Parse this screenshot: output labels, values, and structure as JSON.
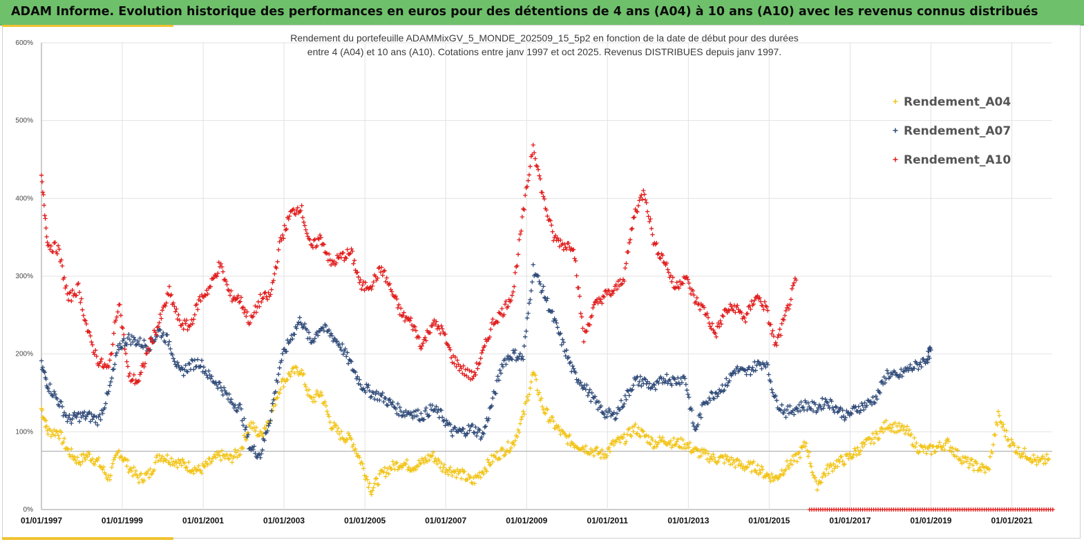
{
  "header": {
    "title": "ADAM Informe. Evolution historique des performances en euros pour des détentions de 4 ans (A04) à 10 ans (A10) avec les revenus connus distribués"
  },
  "chart_data": {
    "type": "scatter",
    "title_line1": "Rendement du portefeuille ADAMMixGV_5_MONDE_202509_15_5p2 en fonction de la date de début pour des durées",
    "title_line2": "entre 4 (A04) et 10 ans (A10). Cotations entre janv 1997 et oct 2025. Revenus DISTRIBUES depuis janv 1997.",
    "xlabel": "",
    "ylabel": "",
    "x_axis": {
      "type": "date",
      "min": "1997-01-01",
      "max": "2022-01-01"
    },
    "ylim": [
      0,
      600
    ],
    "y_ticks": [
      "0%",
      "100%",
      "200%",
      "300%",
      "400%",
      "500%",
      "600%"
    ],
    "x_ticks": [
      "01/01/1997",
      "01/01/1999",
      "01/01/2001",
      "01/01/2003",
      "01/01/2005",
      "01/01/2007",
      "01/01/2009",
      "01/01/2011",
      "01/01/2013",
      "01/01/2015",
      "01/01/2017",
      "01/01/2019",
      "01/01/2021"
    ],
    "reference_line": 75,
    "grid": "vertical and horizontal",
    "legend_position": "top-right",
    "marker": "+",
    "series": [
      {
        "name": "Rendement_A04",
        "color": "#f2c418",
        "points": [
          [
            "1997-01-01",
            130
          ],
          [
            "1997-03-01",
            100
          ],
          [
            "1997-06-01",
            100
          ],
          [
            "1997-09-01",
            75
          ],
          [
            "1997-12-01",
            62
          ],
          [
            "1998-03-01",
            70
          ],
          [
            "1998-06-01",
            60
          ],
          [
            "1998-09-01",
            40
          ],
          [
            "1998-12-01",
            75
          ],
          [
            "1999-03-01",
            55
          ],
          [
            "1999-06-01",
            40
          ],
          [
            "1999-09-01",
            45
          ],
          [
            "1999-12-01",
            70
          ],
          [
            "2000-03-01",
            65
          ],
          [
            "2000-06-01",
            60
          ],
          [
            "2000-09-01",
            55
          ],
          [
            "2000-12-01",
            50
          ],
          [
            "2001-03-01",
            60
          ],
          [
            "2001-06-01",
            70
          ],
          [
            "2001-09-01",
            65
          ],
          [
            "2001-12-01",
            75
          ],
          [
            "2002-03-01",
            110
          ],
          [
            "2002-06-01",
            95
          ],
          [
            "2002-09-01",
            120
          ],
          [
            "2002-12-01",
            160
          ],
          [
            "2003-03-01",
            175
          ],
          [
            "2003-06-01",
            180
          ],
          [
            "2003-09-01",
            140
          ],
          [
            "2003-12-01",
            150
          ],
          [
            "2004-03-01",
            110
          ],
          [
            "2004-06-01",
            95
          ],
          [
            "2004-09-01",
            90
          ],
          [
            "2004-12-01",
            60
          ],
          [
            "2005-03-01",
            25
          ],
          [
            "2005-06-01",
            45
          ],
          [
            "2005-09-01",
            55
          ],
          [
            "2005-12-01",
            60
          ],
          [
            "2006-03-01",
            55
          ],
          [
            "2006-06-01",
            60
          ],
          [
            "2006-09-01",
            70
          ],
          [
            "2006-12-01",
            55
          ],
          [
            "2007-03-01",
            50
          ],
          [
            "2007-06-01",
            45
          ],
          [
            "2007-09-01",
            35
          ],
          [
            "2007-12-01",
            50
          ],
          [
            "2008-03-01",
            65
          ],
          [
            "2008-06-01",
            75
          ],
          [
            "2008-09-01",
            85
          ],
          [
            "2008-12-01",
            120
          ],
          [
            "2009-03-01",
            175
          ],
          [
            "2009-06-01",
            130
          ],
          [
            "2009-09-01",
            110
          ],
          [
            "2009-12-01",
            95
          ],
          [
            "2010-03-01",
            85
          ],
          [
            "2010-06-01",
            80
          ],
          [
            "2010-09-01",
            75
          ],
          [
            "2010-12-01",
            70
          ],
          [
            "2011-03-01",
            85
          ],
          [
            "2011-06-01",
            90
          ],
          [
            "2011-09-01",
            105
          ],
          [
            "2011-12-01",
            95
          ],
          [
            "2012-03-01",
            85
          ],
          [
            "2012-06-01",
            90
          ],
          [
            "2012-09-01",
            85
          ],
          [
            "2012-12-01",
            85
          ],
          [
            "2013-03-01",
            75
          ],
          [
            "2013-06-01",
            70
          ],
          [
            "2013-09-01",
            65
          ],
          [
            "2013-12-01",
            65
          ],
          [
            "2014-03-01",
            60
          ],
          [
            "2014-06-01",
            55
          ],
          [
            "2014-09-01",
            55
          ],
          [
            "2014-12-01",
            45
          ],
          [
            "2015-03-01",
            40
          ],
          [
            "2015-06-01",
            55
          ],
          [
            "2015-09-01",
            65
          ],
          [
            "2015-12-01",
            85
          ],
          [
            "2016-03-01",
            30
          ],
          [
            "2016-06-01",
            50
          ],
          [
            "2016-09-01",
            60
          ],
          [
            "2016-12-01",
            65
          ],
          [
            "2017-03-01",
            75
          ],
          [
            "2017-06-01",
            85
          ],
          [
            "2017-09-01",
            95
          ],
          [
            "2017-12-01",
            110
          ],
          [
            "2018-03-01",
            105
          ],
          [
            "2018-06-01",
            100
          ],
          [
            "2018-09-01",
            80
          ],
          [
            "2018-12-01",
            75
          ],
          [
            "2019-03-01",
            80
          ],
          [
            "2019-06-01",
            85
          ],
          [
            "2019-09-01",
            70
          ],
          [
            "2019-12-01",
            60
          ],
          [
            "2020-03-01",
            55
          ],
          [
            "2020-06-01",
            50
          ],
          [
            "2020-09-01",
            120
          ],
          [
            "2020-12-01",
            90
          ],
          [
            "2021-03-01",
            75
          ],
          [
            "2021-06-01",
            70
          ],
          [
            "2021-09-01",
            60
          ],
          [
            "2021-12-01",
            65
          ]
        ]
      },
      {
        "name": "Rendement_A07",
        "color": "#2f4a78",
        "points": [
          [
            "1997-01-01",
            185
          ],
          [
            "1997-03-01",
            160
          ],
          [
            "1997-06-01",
            140
          ],
          [
            "1997-09-01",
            115
          ],
          [
            "1997-12-01",
            120
          ],
          [
            "1998-03-01",
            120
          ],
          [
            "1998-06-01",
            115
          ],
          [
            "1998-09-01",
            150
          ],
          [
            "1998-12-01",
            210
          ],
          [
            "1999-03-01",
            220
          ],
          [
            "1999-06-01",
            215
          ],
          [
            "1999-09-01",
            210
          ],
          [
            "1999-12-01",
            230
          ],
          [
            "2000-03-01",
            215
          ],
          [
            "2000-06-01",
            175
          ],
          [
            "2000-09-01",
            185
          ],
          [
            "2000-12-01",
            190
          ],
          [
            "2001-03-01",
            170
          ],
          [
            "2001-06-01",
            160
          ],
          [
            "2001-09-01",
            140
          ],
          [
            "2001-12-01",
            130
          ],
          [
            "2002-03-01",
            80
          ],
          [
            "2002-06-01",
            70
          ],
          [
            "2002-09-01",
            120
          ],
          [
            "2002-12-01",
            190
          ],
          [
            "2003-03-01",
            220
          ],
          [
            "2003-06-01",
            245
          ],
          [
            "2003-09-01",
            215
          ],
          [
            "2003-12-01",
            235
          ],
          [
            "2004-03-01",
            225
          ],
          [
            "2004-06-01",
            210
          ],
          [
            "2004-09-01",
            185
          ],
          [
            "2004-12-01",
            160
          ],
          [
            "2005-03-01",
            150
          ],
          [
            "2005-06-01",
            145
          ],
          [
            "2005-09-01",
            135
          ],
          [
            "2005-12-01",
            125
          ],
          [
            "2006-03-01",
            125
          ],
          [
            "2006-06-01",
            120
          ],
          [
            "2006-09-01",
            130
          ],
          [
            "2006-12-01",
            120
          ],
          [
            "2007-03-01",
            100
          ],
          [
            "2007-06-01",
            100
          ],
          [
            "2007-09-01",
            105
          ],
          [
            "2007-12-01",
            95
          ],
          [
            "2008-03-01",
            140
          ],
          [
            "2008-06-01",
            190
          ],
          [
            "2008-09-01",
            200
          ],
          [
            "2008-12-01",
            195
          ],
          [
            "2009-03-01",
            310
          ],
          [
            "2009-06-01",
            280
          ],
          [
            "2009-09-01",
            245
          ],
          [
            "2009-12-01",
            210
          ],
          [
            "2010-03-01",
            175
          ],
          [
            "2010-06-01",
            160
          ],
          [
            "2010-09-01",
            140
          ],
          [
            "2010-12-01",
            125
          ],
          [
            "2011-03-01",
            120
          ],
          [
            "2011-06-01",
            140
          ],
          [
            "2011-09-01",
            165
          ],
          [
            "2011-12-01",
            165
          ],
          [
            "2012-03-01",
            155
          ],
          [
            "2012-06-01",
            170
          ],
          [
            "2012-09-01",
            165
          ],
          [
            "2012-12-01",
            170
          ],
          [
            "2013-03-01",
            100
          ],
          [
            "2013-06-01",
            140
          ],
          [
            "2013-09-01",
            150
          ],
          [
            "2013-12-01",
            160
          ],
          [
            "2014-03-01",
            180
          ],
          [
            "2014-06-01",
            175
          ],
          [
            "2014-09-01",
            185
          ],
          [
            "2014-12-01",
            190
          ],
          [
            "2015-03-01",
            140
          ],
          [
            "2015-06-01",
            125
          ],
          [
            "2015-09-01",
            130
          ],
          [
            "2015-12-01",
            135
          ],
          [
            "2016-03-01",
            130
          ],
          [
            "2016-06-01",
            140
          ],
          [
            "2016-09-01",
            130
          ],
          [
            "2016-12-01",
            120
          ],
          [
            "2017-03-01",
            130
          ],
          [
            "2017-06-01",
            135
          ],
          [
            "2017-09-01",
            145
          ],
          [
            "2017-12-01",
            175
          ],
          [
            "2018-03-01",
            170
          ],
          [
            "2018-06-01",
            180
          ],
          [
            "2018-09-01",
            185
          ],
          [
            "2018-12-01",
            195
          ],
          [
            "2019-01-01",
            205
          ]
        ]
      },
      {
        "name": "Rendement_A10",
        "color": "#e11b1b",
        "points": [
          [
            "1997-01-01",
            425
          ],
          [
            "1997-03-01",
            340
          ],
          [
            "1997-06-01",
            335
          ],
          [
            "1997-09-01",
            270
          ],
          [
            "1997-12-01",
            285
          ],
          [
            "1998-03-01",
            225
          ],
          [
            "1998-06-01",
            190
          ],
          [
            "1998-09-01",
            180
          ],
          [
            "1998-12-01",
            270
          ],
          [
            "1999-03-01",
            170
          ],
          [
            "1999-06-01",
            165
          ],
          [
            "1999-09-01",
            210
          ],
          [
            "1999-12-01",
            240
          ],
          [
            "2000-03-01",
            280
          ],
          [
            "2000-06-01",
            240
          ],
          [
            "2000-09-01",
            235
          ],
          [
            "2000-12-01",
            270
          ],
          [
            "2001-03-01",
            285
          ],
          [
            "2001-06-01",
            315
          ],
          [
            "2001-09-01",
            275
          ],
          [
            "2001-12-01",
            270
          ],
          [
            "2002-03-01",
            240
          ],
          [
            "2002-06-01",
            270
          ],
          [
            "2002-09-01",
            275
          ],
          [
            "2002-12-01",
            345
          ],
          [
            "2003-03-01",
            380
          ],
          [
            "2003-06-01",
            390
          ],
          [
            "2003-09-01",
            335
          ],
          [
            "2003-12-01",
            350
          ],
          [
            "2004-03-01",
            315
          ],
          [
            "2004-06-01",
            325
          ],
          [
            "2004-09-01",
            330
          ],
          [
            "2004-12-01",
            285
          ],
          [
            "2005-03-01",
            290
          ],
          [
            "2005-06-01",
            310
          ],
          [
            "2005-09-01",
            280
          ],
          [
            "2005-12-01",
            250
          ],
          [
            "2006-03-01",
            240
          ],
          [
            "2006-06-01",
            210
          ],
          [
            "2006-09-01",
            240
          ],
          [
            "2006-12-01",
            230
          ],
          [
            "2007-03-01",
            195
          ],
          [
            "2007-06-01",
            180
          ],
          [
            "2007-09-01",
            170
          ],
          [
            "2007-12-01",
            200
          ],
          [
            "2008-03-01",
            240
          ],
          [
            "2008-06-01",
            255
          ],
          [
            "2008-09-01",
            280
          ],
          [
            "2008-12-01",
            380
          ],
          [
            "2009-03-01",
            470
          ],
          [
            "2009-06-01",
            400
          ],
          [
            "2009-09-01",
            350
          ],
          [
            "2009-12-01",
            340
          ],
          [
            "2010-03-01",
            340
          ],
          [
            "2010-06-01",
            220
          ],
          [
            "2010-09-01",
            260
          ],
          [
            "2010-12-01",
            275
          ],
          [
            "2011-03-01",
            280
          ],
          [
            "2011-06-01",
            300
          ],
          [
            "2011-09-01",
            380
          ],
          [
            "2011-12-01",
            410
          ],
          [
            "2012-03-01",
            340
          ],
          [
            "2012-06-01",
            320
          ],
          [
            "2012-09-01",
            285
          ],
          [
            "2012-12-01",
            300
          ],
          [
            "2013-03-01",
            270
          ],
          [
            "2013-06-01",
            255
          ],
          [
            "2013-09-01",
            225
          ],
          [
            "2013-12-01",
            255
          ],
          [
            "2014-03-01",
            260
          ],
          [
            "2014-06-01",
            245
          ],
          [
            "2014-09-01",
            275
          ],
          [
            "2014-12-01",
            260
          ],
          [
            "2015-03-01",
            210
          ],
          [
            "2015-06-01",
            250
          ],
          [
            "2015-09-01",
            295
          ]
        ]
      }
    ],
    "zero_band": {
      "series": "Rendement_A10",
      "from": "2016-01-01",
      "to": "2022-01-01",
      "value": 0
    }
  }
}
